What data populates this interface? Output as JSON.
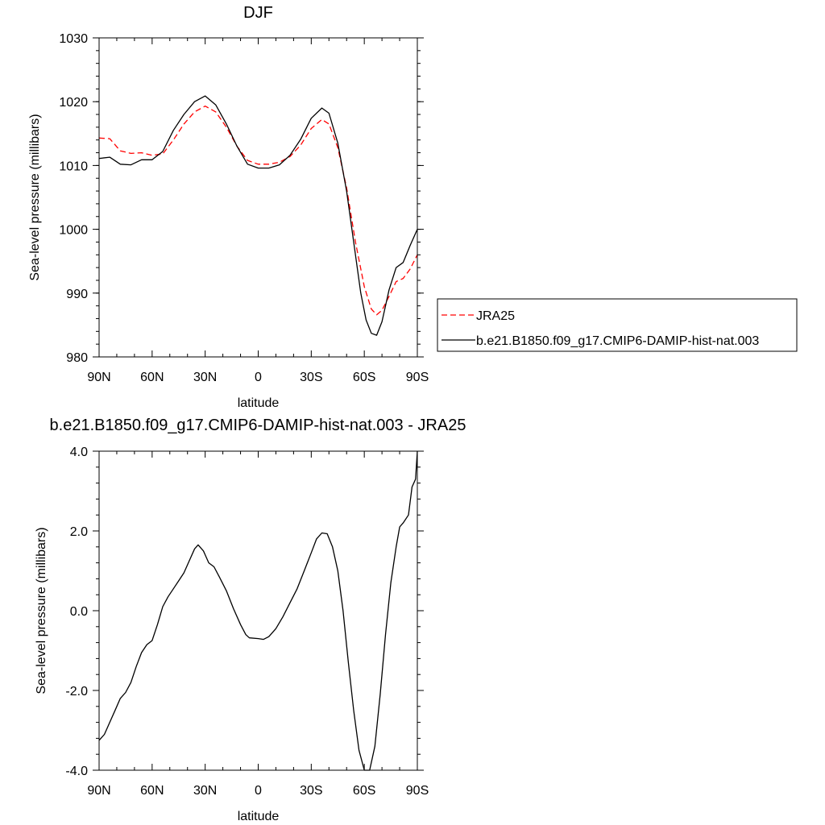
{
  "chart_data": [
    {
      "type": "line",
      "title": "DJF",
      "xlabel": "latitude",
      "ylabel": "Sea-level pressure (millibars)",
      "ylim": [
        980,
        1030
      ],
      "yticks": [
        980,
        990,
        1000,
        1010,
        1020,
        1030
      ],
      "ytick_labels": [
        "980",
        "990",
        "1000",
        "1010",
        "1020",
        "1030"
      ],
      "xlim": [
        90,
        -90
      ],
      "xticks": [
        90,
        60,
        30,
        0,
        -30,
        -60,
        -90
      ],
      "xtick_labels": [
        "90N",
        "60N",
        "30N",
        "0",
        "30S",
        "60S",
        "90S"
      ],
      "grid": false,
      "legend_position": "right",
      "series": [
        {
          "name": "JRA25",
          "color": "#ff0000",
          "dash": "dashed",
          "points": [
            [
              90,
              1014.3
            ],
            [
              84,
              1014.2
            ],
            [
              78,
              1012.3
            ],
            [
              72,
              1011.9
            ],
            [
              66,
              1012.0
            ],
            [
              60,
              1011.6
            ],
            [
              54,
              1011.8
            ],
            [
              48,
              1014.0
            ],
            [
              42,
              1016.5
            ],
            [
              36,
              1018.4
            ],
            [
              30,
              1019.3
            ],
            [
              24,
              1018.4
            ],
            [
              18,
              1016.0
            ],
            [
              12,
              1013.0
            ],
            [
              6,
              1010.8
            ],
            [
              0,
              1010.2
            ],
            [
              -6,
              1010.2
            ],
            [
              -12,
              1010.5
            ],
            [
              -18,
              1011.4
            ],
            [
              -24,
              1013.2
            ],
            [
              -30,
              1015.8
            ],
            [
              -36,
              1017.2
            ],
            [
              -40,
              1016.5
            ],
            [
              -45,
              1012.8
            ],
            [
              -50,
              1006.5
            ],
            [
              -55,
              998.0
            ],
            [
              -60,
              991.0
            ],
            [
              -64,
              987.5
            ],
            [
              -67,
              986.6
            ],
            [
              -70,
              987.3
            ],
            [
              -74,
              989.5
            ],
            [
              -78,
              991.8
            ],
            [
              -82,
              992.3
            ],
            [
              -86,
              993.8
            ],
            [
              -90,
              996.0
            ]
          ]
        },
        {
          "name": "b.e21.B1850.f09_g17.CMIP6-DAMIP-hist-nat.003",
          "color": "#000000",
          "dash": "solid",
          "points": [
            [
              90,
              1011.1
            ],
            [
              84,
              1011.3
            ],
            [
              78,
              1010.2
            ],
            [
              72,
              1010.1
            ],
            [
              66,
              1010.9
            ],
            [
              60,
              1010.9
            ],
            [
              54,
              1012.2
            ],
            [
              48,
              1015.5
            ],
            [
              42,
              1018.0
            ],
            [
              36,
              1020.0
            ],
            [
              30,
              1020.9
            ],
            [
              24,
              1019.5
            ],
            [
              18,
              1016.5
            ],
            [
              12,
              1013.0
            ],
            [
              6,
              1010.2
            ],
            [
              0,
              1009.6
            ],
            [
              -6,
              1009.6
            ],
            [
              -12,
              1010.1
            ],
            [
              -18,
              1011.6
            ],
            [
              -24,
              1014.1
            ],
            [
              -30,
              1017.4
            ],
            [
              -36,
              1019.0
            ],
            [
              -40,
              1018.2
            ],
            [
              -45,
              1013.5
            ],
            [
              -50,
              1006.0
            ],
            [
              -55,
              996.0
            ],
            [
              -58,
              990.0
            ],
            [
              -61,
              985.8
            ],
            [
              -64,
              983.7
            ],
            [
              -67,
              983.4
            ],
            [
              -70,
              985.5
            ],
            [
              -74,
              990.5
            ],
            [
              -78,
              994.0
            ],
            [
              -82,
              994.8
            ],
            [
              -86,
              997.5
            ],
            [
              -90,
              1000.0
            ]
          ]
        }
      ]
    },
    {
      "type": "line",
      "title": "b.e21.B1850.f09_g17.CMIP6-DAMIP-hist-nat.003 - JRA25",
      "xlabel": "latitude",
      "ylabel": "Sea-level pressure (millibars)",
      "ylim": [
        -4.0,
        4.0
      ],
      "yticks": [
        -4,
        -2,
        0,
        2,
        4
      ],
      "ytick_labels": [
        "-4.0",
        "-2.0",
        "0.0",
        "2.0",
        "4.0"
      ],
      "xlim": [
        90,
        -90
      ],
      "xticks": [
        90,
        60,
        30,
        0,
        -30,
        -60,
        -90
      ],
      "xtick_labels": [
        "90N",
        "60N",
        "30N",
        "0",
        "30S",
        "60S",
        "90S"
      ],
      "grid": false,
      "series": [
        {
          "color": "#000000",
          "dash": "solid",
          "points": [
            [
              90,
              -3.25
            ],
            [
              87,
              -3.1
            ],
            [
              84,
              -2.8
            ],
            [
              81,
              -2.5
            ],
            [
              78,
              -2.2
            ],
            [
              75,
              -2.05
            ],
            [
              72,
              -1.8
            ],
            [
              69,
              -1.4
            ],
            [
              66,
              -1.05
            ],
            [
              63,
              -0.85
            ],
            [
              60,
              -0.75
            ],
            [
              57,
              -0.35
            ],
            [
              54,
              0.1
            ],
            [
              51,
              0.35
            ],
            [
              48,
              0.55
            ],
            [
              45,
              0.75
            ],
            [
              42,
              0.95
            ],
            [
              39,
              1.25
            ],
            [
              36,
              1.55
            ],
            [
              34,
              1.65
            ],
            [
              31,
              1.5
            ],
            [
              28,
              1.2
            ],
            [
              25,
              1.1
            ],
            [
              22,
              0.85
            ],
            [
              18,
              0.5
            ],
            [
              14,
              0.05
            ],
            [
              10,
              -0.35
            ],
            [
              7,
              -0.6
            ],
            [
              5,
              -0.68
            ],
            [
              0,
              -0.7
            ],
            [
              -3,
              -0.72
            ],
            [
              -6,
              -0.65
            ],
            [
              -10,
              -0.45
            ],
            [
              -14,
              -0.15
            ],
            [
              -18,
              0.2
            ],
            [
              -22,
              0.55
            ],
            [
              -26,
              1.0
            ],
            [
              -30,
              1.45
            ],
            [
              -33,
              1.8
            ],
            [
              -36,
              1.95
            ],
            [
              -39,
              1.93
            ],
            [
              -42,
              1.6
            ],
            [
              -45,
              1.0
            ],
            [
              -48,
              0.0
            ],
            [
              -51,
              -1.3
            ],
            [
              -54,
              -2.5
            ],
            [
              -57,
              -3.5
            ],
            [
              -60,
              -4.0
            ],
            [
              -63,
              -4.0
            ],
            [
              -66,
              -3.4
            ],
            [
              -69,
              -2.1
            ],
            [
              -72,
              -0.6
            ],
            [
              -75,
              0.7
            ],
            [
              -78,
              1.6
            ],
            [
              -80,
              2.1
            ],
            [
              -82,
              2.2
            ],
            [
              -85,
              2.4
            ],
            [
              -87,
              3.1
            ],
            [
              -89,
              3.3
            ],
            [
              -90,
              4.0
            ]
          ]
        }
      ]
    }
  ]
}
